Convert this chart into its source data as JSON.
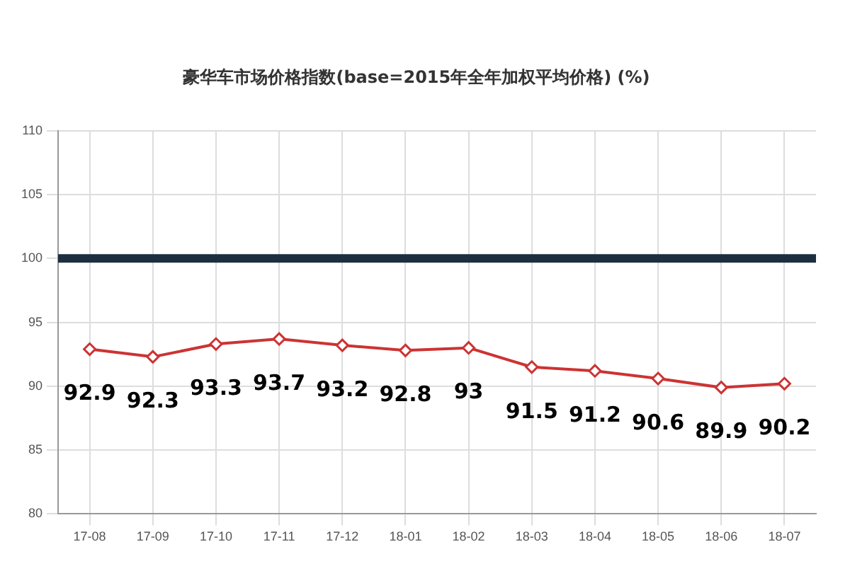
{
  "chart_data": {
    "type": "line",
    "title": "豪华车市场价格指数(base=2015年全年加权平均价格) (%)",
    "categories": [
      "17-08",
      "17-09",
      "17-10",
      "17-11",
      "17-12",
      "18-01",
      "18-02",
      "18-03",
      "18-04",
      "18-05",
      "18-06",
      "18-07"
    ],
    "series": [
      {
        "color": "#cc3333",
        "values": [
          92.9,
          92.3,
          93.3,
          93.7,
          93.2,
          92.8,
          93,
          91.5,
          91.2,
          90.6,
          89.9,
          90.2
        ]
      }
    ],
    "ylim": [
      80,
      110
    ],
    "yticks": [
      80,
      85,
      90,
      95,
      100,
      105,
      110
    ],
    "ref_lines": [
      {
        "axis": "y",
        "value": 100,
        "color": "#1c2e40"
      }
    ],
    "grid": true,
    "legend": false,
    "marker": "diamond",
    "line_style": "solid",
    "data_labels": true
  }
}
